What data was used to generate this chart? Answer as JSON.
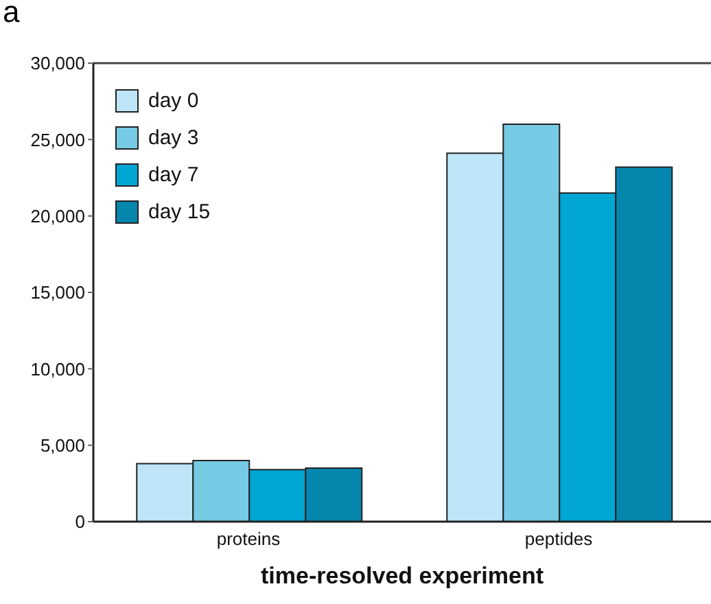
{
  "chart_data": {
    "type": "bar",
    "xlabel": "time-resolved experiment",
    "annotations": [
      "a"
    ],
    "categories": [
      "proteins",
      "peptides"
    ],
    "series": [
      {
        "name": "day 0",
        "color": "#bde5f7",
        "values": [
          3800,
          24100
        ]
      },
      {
        "name": "day 3",
        "color": "#77cae3",
        "values": [
          4000,
          26000
        ]
      },
      {
        "name": "day 7",
        "color": "#00a6d4",
        "values": [
          3400,
          21500
        ]
      },
      {
        "name": "day 15",
        "color": "#0586ad",
        "values": [
          3500,
          23200
        ]
      }
    ],
    "ylim": [
      0,
      30000
    ],
    "yticks": [
      0,
      {
        "value": 5000,
        "label": "5,000"
      },
      {
        "value": 10000,
        "label": "10,000"
      },
      {
        "value": 15000,
        "label": "15,000"
      },
      {
        "value": 20000,
        "label": "20,000"
      },
      {
        "value": 25000,
        "label": "25,000"
      },
      {
        "value": 30000,
        "label": "30,000"
      }
    ],
    "grid": false,
    "legend": "top left"
  }
}
